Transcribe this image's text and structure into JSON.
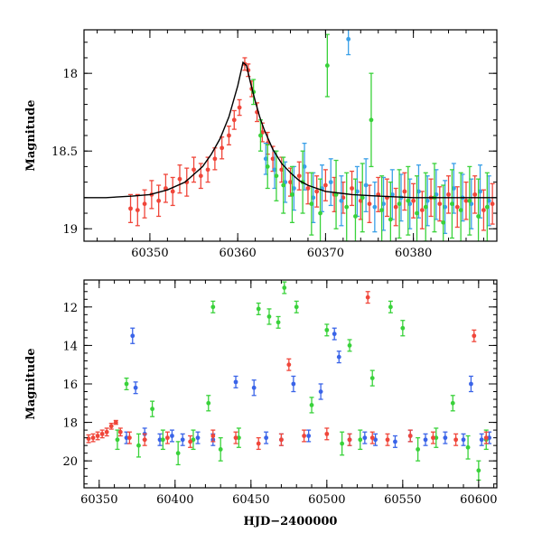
{
  "chart_data": [
    {
      "type": "scatter",
      "panel": "top",
      "xlabel": "",
      "ylabel": "Magnitude",
      "xlim": [
        60342.5,
        60389.5
      ],
      "ylim": [
        19.08,
        17.72
      ],
      "y_inverted": true,
      "xticks": [
        60350,
        60360,
        60370,
        60380
      ],
      "xtick_labels": [
        "60350",
        "60360",
        "60370",
        "60380"
      ],
      "yticks": [
        18,
        18.5,
        19
      ],
      "ytick_labels": [
        "18",
        "18.5",
        "19"
      ],
      "grid": false,
      "legend": "none",
      "model_curve": {
        "color": "#000000",
        "x": [
          60342.5,
          60345,
          60348,
          60350,
          60352,
          60354,
          60356,
          60357,
          60358,
          60359,
          60360,
          60360.6,
          60361,
          60361.5,
          60362,
          60362.5,
          60363,
          60364,
          60365,
          60366,
          60367,
          60368,
          60370,
          60373,
          60376,
          60380,
          60385,
          60389.5
        ],
        "y": [
          18.8,
          18.8,
          18.79,
          18.78,
          18.75,
          18.7,
          18.6,
          18.52,
          18.42,
          18.28,
          18.08,
          17.93,
          17.95,
          18.07,
          18.18,
          18.28,
          18.36,
          18.49,
          18.58,
          18.64,
          18.69,
          18.72,
          18.76,
          18.78,
          18.79,
          18.8,
          18.8,
          18.8
        ]
      },
      "series": [
        {
          "color": "#f0463a",
          "x": [
            60347.8,
            60348.6,
            60349.4,
            60350.2,
            60351.0,
            60351.8,
            60352.6,
            60353.4,
            60354.2,
            60355.0,
            60355.8,
            60356.6,
            60357.4,
            60358.2,
            60359.0,
            60359.6,
            60360.2,
            60360.8,
            60361.2,
            60361.6,
            60362.2,
            60362.8,
            60363.4,
            60364.0,
            60365.0,
            60366.0,
            60367.0,
            60368.0,
            60369.0,
            60370.0,
            60371.0,
            60372.0,
            60373.0,
            60374.0,
            60375.0,
            60376.0,
            60377.0,
            60378.0,
            60379.0,
            60380.0,
            60381.0,
            60382.0,
            60383.0,
            60384.0,
            60385.0,
            60386.0,
            60387.0,
            60388.0,
            60389.0
          ],
          "y": [
            18.87,
            18.88,
            18.84,
            18.78,
            18.82,
            18.74,
            18.76,
            18.68,
            18.7,
            18.62,
            18.66,
            18.62,
            18.55,
            18.48,
            18.4,
            18.3,
            18.22,
            17.94,
            17.98,
            18.1,
            18.25,
            18.38,
            18.45,
            18.55,
            18.62,
            18.7,
            18.66,
            18.74,
            18.76,
            18.72,
            18.78,
            18.8,
            18.74,
            18.82,
            18.84,
            18.78,
            18.8,
            18.86,
            18.76,
            18.82,
            18.88,
            18.8,
            18.84,
            18.78,
            18.86,
            18.82,
            18.78,
            18.88,
            18.84
          ],
          "err": [
            0.09,
            0.1,
            0.09,
            0.09,
            0.1,
            0.09,
            0.09,
            0.09,
            0.09,
            0.08,
            0.08,
            0.08,
            0.07,
            0.07,
            0.06,
            0.06,
            0.05,
            0.04,
            0.04,
            0.05,
            0.06,
            0.06,
            0.07,
            0.08,
            0.08,
            0.09,
            0.09,
            0.1,
            0.1,
            0.1,
            0.11,
            0.1,
            0.11,
            0.12,
            0.12,
            0.11,
            0.12,
            0.12,
            0.12,
            0.11,
            0.12,
            0.12,
            0.11,
            0.12,
            0.13,
            0.12,
            0.12,
            0.13,
            0.13
          ]
        },
        {
          "color": "#3aa0e8",
          "x": [
            60363.2,
            60364.2,
            60365.4,
            60366.4,
            60367.6,
            60368.6,
            60369.6,
            60370.6,
            60371.8,
            60372.6,
            60373.6,
            60374.6,
            60375.6,
            60376.6,
            60377.6,
            60378.6,
            60379.6,
            60380.6,
            60381.6,
            60382.6,
            60383.6,
            60384.6,
            60385.6,
            60386.6,
            60387.6,
            60388.6
          ],
          "y": [
            18.55,
            18.62,
            18.7,
            18.74,
            18.6,
            18.8,
            18.74,
            18.7,
            18.82,
            17.78,
            18.76,
            18.72,
            18.86,
            18.84,
            18.78,
            18.8,
            18.84,
            18.76,
            18.82,
            18.78,
            18.86,
            18.74,
            18.8,
            18.84,
            18.76,
            18.82
          ],
          "err": [
            0.1,
            0.12,
            0.13,
            0.14,
            0.15,
            0.16,
            0.15,
            0.15,
            0.16,
            0.1,
            0.16,
            0.17,
            0.16,
            0.17,
            0.16,
            0.15,
            0.16,
            0.17,
            0.16,
            0.16,
            0.17,
            0.16,
            0.15,
            0.16,
            0.17,
            0.16
          ]
        },
        {
          "color": "#39d23a",
          "x": [
            60361.8,
            60362.6,
            60363.4,
            60364.4,
            60365.2,
            60366.2,
            60367.4,
            60368.4,
            60369.4,
            60370.2,
            60371.2,
            60372.4,
            60373.4,
            60374.2,
            60375.2,
            60376.4,
            60377.4,
            60378.4,
            60379.4,
            60380.4,
            60381.4,
            60382.4,
            60383.4,
            60384.4,
            60385.4,
            60386.4,
            60387.4,
            60388.4
          ],
          "y": [
            18.12,
            18.4,
            18.6,
            18.66,
            18.72,
            18.78,
            18.7,
            18.84,
            18.9,
            17.95,
            18.78,
            18.86,
            18.92,
            18.8,
            18.3,
            18.88,
            18.94,
            18.84,
            18.82,
            18.9,
            18.86,
            18.8,
            18.96,
            18.84,
            18.88,
            18.82,
            18.92,
            18.86
          ],
          "err": [
            0.08,
            0.1,
            0.14,
            0.16,
            0.18,
            0.18,
            0.2,
            0.2,
            0.22,
            0.2,
            0.22,
            0.22,
            0.24,
            0.22,
            0.3,
            0.22,
            0.24,
            0.22,
            0.22,
            0.24,
            0.22,
            0.22,
            0.24,
            0.22,
            0.24,
            0.22,
            0.24,
            0.22
          ]
        }
      ]
    },
    {
      "type": "scatter",
      "panel": "bottom",
      "xlabel": "HJD−2400000",
      "ylabel": "Magnitude",
      "xlim": [
        60340,
        60612
      ],
      "ylim": [
        21.4,
        10.6
      ],
      "y_inverted": true,
      "xticks": [
        60350,
        60400,
        60450,
        60500,
        60550,
        60600
      ],
      "xtick_labels": [
        "60350",
        "60400",
        "60450",
        "60500",
        "60550",
        "60600"
      ],
      "yticks": [
        12,
        14,
        16,
        18,
        20
      ],
      "ytick_labels": [
        "12",
        "14",
        "16",
        "18",
        "20"
      ],
      "grid": false,
      "legend": "none",
      "series": [
        {
          "color": "#3a64e8",
          "x": [
            60368,
            60372,
            60374,
            60380,
            60390,
            60398,
            60405,
            60415,
            60425,
            60440,
            60452,
            60460,
            60470,
            60478,
            60488,
            60496,
            60505,
            60508,
            60515,
            60525,
            60532,
            60545,
            60555,
            60565,
            60578,
            60590,
            60595,
            60602,
            60607
          ],
          "y": [
            18.8,
            13.5,
            16.2,
            18.6,
            18.9,
            18.7,
            18.9,
            18.8,
            18.9,
            15.9,
            16.2,
            18.8,
            18.9,
            16.0,
            18.7,
            16.4,
            13.4,
            14.6,
            18.9,
            18.8,
            18.9,
            19.0,
            18.7,
            18.9,
            18.8,
            18.9,
            16.0,
            18.9,
            18.8
          ],
          "err": [
            0.3,
            0.4,
            0.3,
            0.3,
            0.3,
            0.3,
            0.3,
            0.3,
            0.3,
            0.3,
            0.4,
            0.3,
            0.3,
            0.4,
            0.3,
            0.4,
            0.3,
            0.3,
            0.3,
            0.3,
            0.3,
            0.3,
            0.3,
            0.3,
            0.3,
            0.3,
            0.4,
            0.3,
            0.3
          ]
        },
        {
          "color": "#39d23a",
          "x": [
            60362,
            60368,
            60376,
            60385,
            60392,
            60402,
            60412,
            60422,
            60425,
            60430,
            60442,
            60455,
            60462,
            60468,
            60472,
            60480,
            60490,
            60500,
            60510,
            60515,
            60522,
            60530,
            60542,
            60550,
            60560,
            60572,
            60583,
            60593,
            60600,
            60605
          ],
          "y": [
            18.9,
            16.0,
            19.2,
            17.3,
            18.9,
            19.6,
            18.9,
            17.0,
            12.0,
            19.4,
            18.8,
            12.1,
            12.5,
            12.8,
            11.0,
            12.0,
            17.1,
            13.2,
            19.1,
            14.0,
            18.9,
            15.7,
            12.0,
            13.1,
            19.4,
            18.8,
            17.0,
            19.3,
            20.5,
            18.9
          ],
          "err": [
            0.5,
            0.3,
            0.6,
            0.4,
            0.5,
            0.6,
            0.5,
            0.4,
            0.3,
            0.6,
            0.5,
            0.3,
            0.4,
            0.3,
            0.3,
            0.3,
            0.4,
            0.3,
            0.6,
            0.3,
            0.5,
            0.4,
            0.3,
            0.4,
            0.6,
            0.5,
            0.4,
            0.6,
            0.5,
            0.5
          ]
        },
        {
          "color": "#f0463a",
          "x": [
            60343,
            60346,
            60349,
            60352,
            60355,
            60358,
            60361,
            60364,
            60370,
            60380,
            60395,
            60410,
            60425,
            60440,
            60455,
            60470,
            60475,
            60485,
            60500,
            60515,
            60527,
            60530,
            60540,
            60555,
            60570,
            60585,
            60597,
            60605
          ],
          "y": [
            18.85,
            18.8,
            18.7,
            18.6,
            18.5,
            18.2,
            18.0,
            18.5,
            18.8,
            18.9,
            18.8,
            19.0,
            18.7,
            18.8,
            19.1,
            18.9,
            15.0,
            18.7,
            18.6,
            18.9,
            11.5,
            18.8,
            18.9,
            18.7,
            18.8,
            18.9,
            13.5,
            18.8
          ],
          "err": [
            0.2,
            0.2,
            0.2,
            0.2,
            0.2,
            0.15,
            0.1,
            0.2,
            0.3,
            0.3,
            0.3,
            0.3,
            0.3,
            0.3,
            0.3,
            0.3,
            0.3,
            0.3,
            0.3,
            0.3,
            0.3,
            0.3,
            0.3,
            0.3,
            0.3,
            0.3,
            0.3,
            0.3
          ]
        }
      ]
    }
  ]
}
